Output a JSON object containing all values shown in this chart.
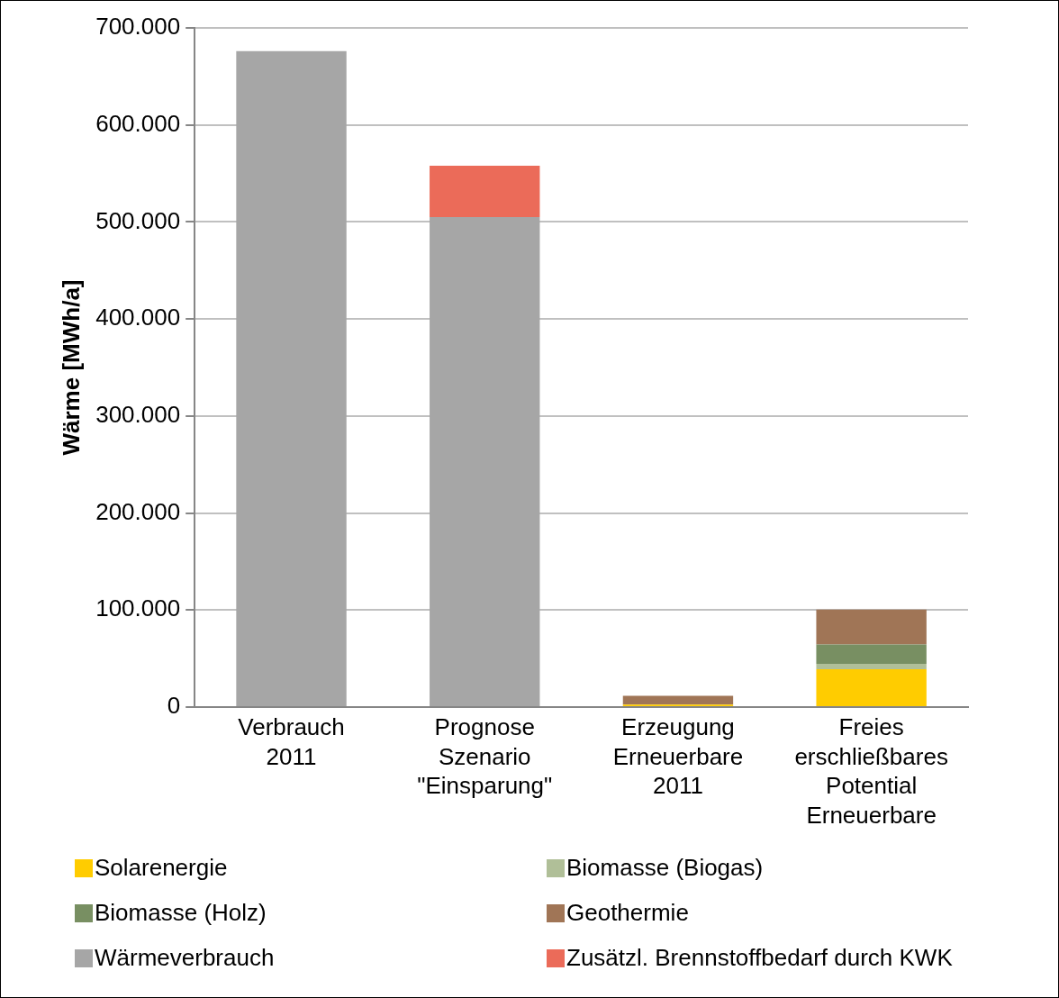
{
  "chart_data": {
    "type": "bar",
    "stacked": true,
    "ylabel": "Wärme [MWh/a]",
    "categories": [
      "Verbrauch 2011",
      "Prognose Szenario \"Einsparung\"",
      "Erzeugung Erneuerbare 2011",
      "Freies erschließbares Potential Erneuerbare"
    ],
    "series": [
      {
        "name": "Solarenergie",
        "color": "#ffcc00",
        "values": [
          null,
          null,
          2500,
          39000
        ]
      },
      {
        "name": "Biomasse (Biogas)",
        "color": "#b0bf98",
        "values": [
          null,
          null,
          null,
          5500
        ]
      },
      {
        "name": "Biomasse (Holz)",
        "color": "#788f62",
        "values": [
          null,
          null,
          null,
          20000
        ]
      },
      {
        "name": "Geothermie",
        "color": "#a07556",
        "values": [
          null,
          null,
          9000,
          36000
        ]
      },
      {
        "name": "Wärmeverbrauch",
        "color": "#a6a6a6",
        "values": [
          676000,
          505000,
          null,
          null
        ]
      },
      {
        "name": "Zusätzl. Brennstoffbedarf durch KWK",
        "color": "#eb6b59",
        "values": [
          null,
          53000,
          null,
          null
        ]
      }
    ],
    "ylim": [
      0,
      700000
    ],
    "yticks": [
      {
        "value": 0,
        "label": "0"
      },
      {
        "value": 100000,
        "label": "100.000"
      },
      {
        "value": 200000,
        "label": "200.000"
      },
      {
        "value": 300000,
        "label": "300.000"
      },
      {
        "value": 400000,
        "label": "400.000"
      },
      {
        "value": 500000,
        "label": "500.000"
      },
      {
        "value": 600000,
        "label": "600.000"
      },
      {
        "value": 700000,
        "label": "700.000"
      }
    ],
    "grid": "y",
    "legend": "bottom"
  }
}
